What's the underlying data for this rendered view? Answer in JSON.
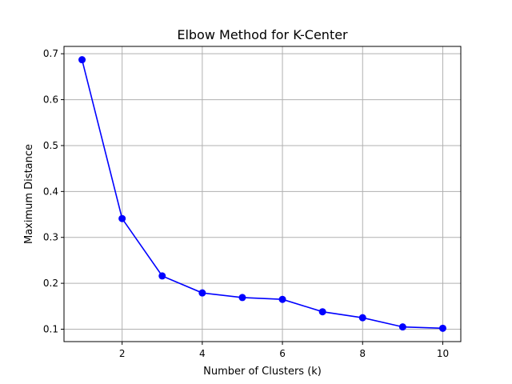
{
  "chart_data": {
    "type": "line",
    "title": "Elbow Method for K-Center",
    "xlabel": "Number of Clusters (k)",
    "ylabel": "Maximum Distance",
    "x": [
      1,
      2,
      3,
      4,
      5,
      6,
      7,
      8,
      9,
      10
    ],
    "series": [
      {
        "values": [
          0.687,
          0.341,
          0.216,
          0.179,
          0.169,
          0.165,
          0.138,
          0.125,
          0.105,
          0.102
        ],
        "color": "#0000ff",
        "marker": "circle"
      }
    ],
    "xlim": [
      0.55,
      10.45
    ],
    "ylim": [
      0.073,
      0.716
    ],
    "xticks": [
      "2",
      "4",
      "6",
      "8",
      "10"
    ],
    "yticks": [
      "0.1",
      "0.2",
      "0.3",
      "0.4",
      "0.5",
      "0.6",
      "0.7"
    ],
    "grid": true,
    "grid_color": "#b0b0b0"
  }
}
